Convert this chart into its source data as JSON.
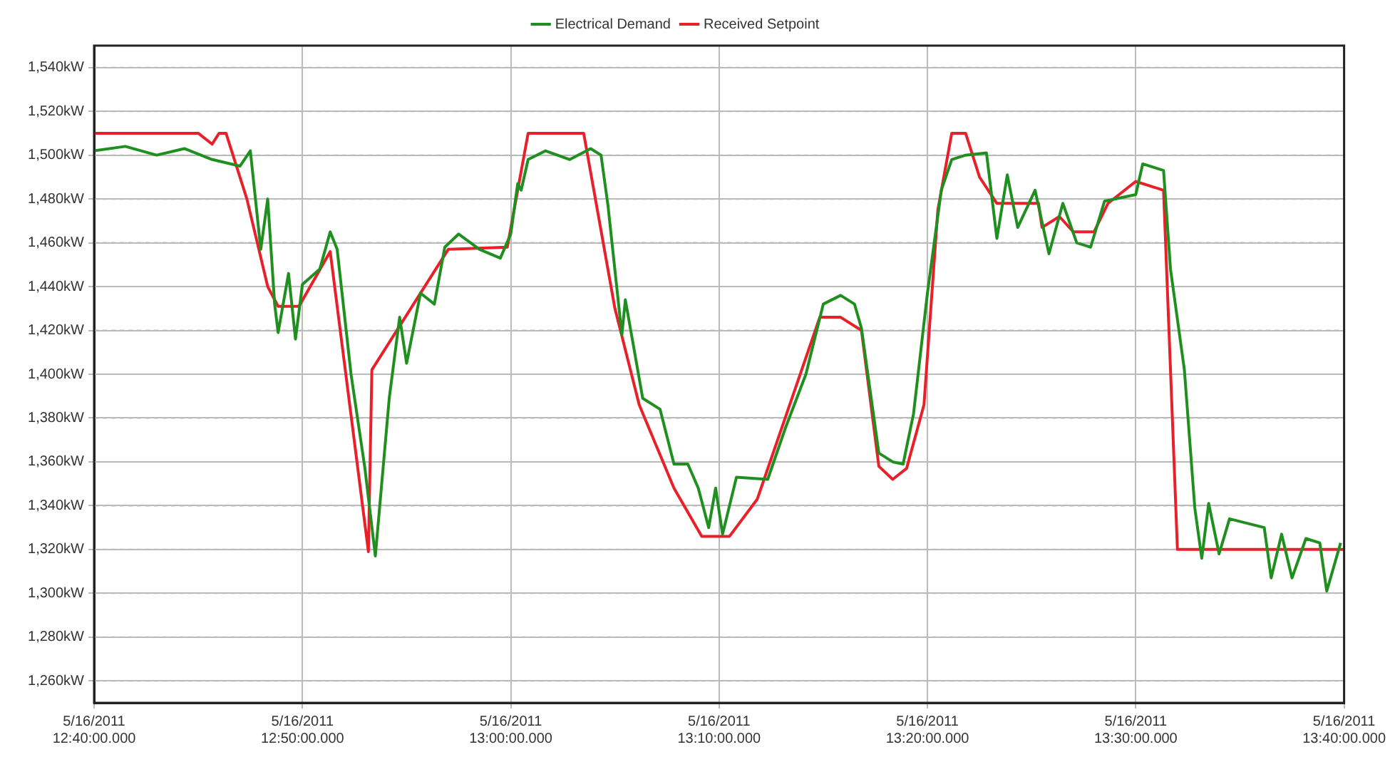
{
  "chart_data": {
    "type": "line",
    "marker": "none",
    "line_style": "solid",
    "grid": true,
    "legend": "top",
    "xlim": [
      "2011-05-16T12:40:00",
      "2011-05-16T13:40:00"
    ],
    "xticks": [
      {
        "value": "2011-05-16T12:40:00",
        "label": "5/16/2011\n12:40:00.000"
      },
      {
        "value": "2011-05-16T12:50:00",
        "label": "5/16/2011\n12:50:00.000"
      },
      {
        "value": "2011-05-16T13:00:00",
        "label": "5/16/2011\n13:00:00.000"
      },
      {
        "value": "2011-05-16T13:10:00",
        "label": "5/16/2011\n13:10:00.000"
      },
      {
        "value": "2011-05-16T13:20:00",
        "label": "5/16/2011\n13:20:00.000"
      },
      {
        "value": "2011-05-16T13:30:00",
        "label": "5/16/2011\n13:30:00.000"
      },
      {
        "value": "2011-05-16T13:40:00",
        "label": "5/16/2011\n13:40:00.000"
      }
    ],
    "ylim": [
      1250,
      1550
    ],
    "yticks": [
      {
        "value": 1260,
        "label": "1,260kW"
      },
      {
        "value": 1280,
        "label": "1,280kW"
      },
      {
        "value": 1300,
        "label": "1,300kW"
      },
      {
        "value": 1320,
        "label": "1,320kW"
      },
      {
        "value": 1340,
        "label": "1,340kW"
      },
      {
        "value": 1360,
        "label": "1,360kW"
      },
      {
        "value": 1380,
        "label": "1,380kW"
      },
      {
        "value": 1400,
        "label": "1,400kW"
      },
      {
        "value": 1420,
        "label": "1,420kW"
      },
      {
        "value": 1440,
        "label": "1,440kW"
      },
      {
        "value": 1460,
        "label": "1,460kW"
      },
      {
        "value": 1480,
        "label": "1,480kW"
      },
      {
        "value": 1500,
        "label": "1,500kW"
      },
      {
        "value": 1520,
        "label": "1,520kW"
      },
      {
        "value": 1540,
        "label": "1,540kW"
      }
    ],
    "series": [
      {
        "name": "Electrical Demand",
        "color": "#1f8f1f",
        "x": [
          "2011-05-16T12:40:00",
          "2011-05-16T12:41:30",
          "2011-05-16T12:43:00",
          "2011-05-16T12:44:20",
          "2011-05-16T12:45:40",
          "2011-05-16T12:47:00",
          "2011-05-16T12:47:30",
          "2011-05-16T12:48:00",
          "2011-05-16T12:48:20",
          "2011-05-16T12:48:40",
          "2011-05-16T12:48:50",
          "2011-05-16T12:49:20",
          "2011-05-16T12:49:40",
          "2011-05-16T12:50:00",
          "2011-05-16T12:50:50",
          "2011-05-16T12:51:20",
          "2011-05-16T12:51:40",
          "2011-05-16T12:52:20",
          "2011-05-16T12:53:00",
          "2011-05-16T12:53:30",
          "2011-05-16T12:54:10",
          "2011-05-16T12:54:40",
          "2011-05-16T12:55:00",
          "2011-05-16T12:55:40",
          "2011-05-16T12:56:20",
          "2011-05-16T12:56:50",
          "2011-05-16T12:57:30",
          "2011-05-16T12:58:30",
          "2011-05-16T12:59:30",
          "2011-05-16T13:00:00",
          "2011-05-16T13:00:20",
          "2011-05-16T13:00:30",
          "2011-05-16T13:00:50",
          "2011-05-16T13:01:40",
          "2011-05-16T13:02:50",
          "2011-05-16T13:03:50",
          "2011-05-16T13:04:20",
          "2011-05-16T13:04:40",
          "2011-05-16T13:05:20",
          "2011-05-16T13:05:30",
          "2011-05-16T13:06:20",
          "2011-05-16T13:07:10",
          "2011-05-16T13:07:50",
          "2011-05-16T13:08:30",
          "2011-05-16T13:09:00",
          "2011-05-16T13:09:30",
          "2011-05-16T13:09:50",
          "2011-05-16T13:10:10",
          "2011-05-16T13:10:50",
          "2011-05-16T13:12:20",
          "2011-05-16T13:13:10",
          "2011-05-16T13:14:10",
          "2011-05-16T13:15:00",
          "2011-05-16T13:15:50",
          "2011-05-16T13:16:30",
          "2011-05-16T13:16:50",
          "2011-05-16T13:17:40",
          "2011-05-16T13:18:20",
          "2011-05-16T13:18:50",
          "2011-05-16T13:19:20",
          "2011-05-16T13:20:00",
          "2011-05-16T13:20:40",
          "2011-05-16T13:21:10",
          "2011-05-16T13:21:50",
          "2011-05-16T13:22:50",
          "2011-05-16T13:23:20",
          "2011-05-16T13:23:50",
          "2011-05-16T13:24:20",
          "2011-05-16T13:25:10",
          "2011-05-16T13:25:50",
          "2011-05-16T13:26:30",
          "2011-05-16T13:27:10",
          "2011-05-16T13:27:50",
          "2011-05-16T13:28:30",
          "2011-05-16T13:30:00",
          "2011-05-16T13:30:20",
          "2011-05-16T13:31:20",
          "2011-05-16T13:31:40",
          "2011-05-16T13:32:20",
          "2011-05-16T13:32:50",
          "2011-05-16T13:33:10",
          "2011-05-16T13:33:30",
          "2011-05-16T13:34:00",
          "2011-05-16T13:34:30",
          "2011-05-16T13:36:10",
          "2011-05-16T13:36:30",
          "2011-05-16T13:37:00",
          "2011-05-16T13:37:30",
          "2011-05-16T13:38:10",
          "2011-05-16T13:38:50",
          "2011-05-16T13:39:10",
          "2011-05-16T13:39:50"
        ],
        "values": [
          1502,
          1504,
          1500,
          1503,
          1498,
          1495,
          1502,
          1457,
          1480,
          1432,
          1419,
          1446,
          1416,
          1441,
          1448,
          1465,
          1457,
          1400,
          1357,
          1317,
          1389,
          1426,
          1405,
          1437,
          1432,
          1458,
          1464,
          1457,
          1453,
          1464,
          1487,
          1484,
          1498,
          1502,
          1498,
          1503,
          1500,
          1477,
          1418,
          1434,
          1389,
          1384,
          1359,
          1359,
          1348,
          1330,
          1348,
          1327,
          1353,
          1352,
          1375,
          1400,
          1432,
          1436,
          1432,
          1421,
          1364,
          1360,
          1359,
          1382,
          1437,
          1484,
          1498,
          1500,
          1501,
          1462,
          1491,
          1467,
          1484,
          1455,
          1478,
          1460,
          1458,
          1479,
          1482,
          1496,
          1493,
          1448,
          1402,
          1339,
          1316,
          1341,
          1318,
          1334,
          1330,
          1307,
          1327,
          1307,
          1325,
          1323,
          1301,
          1323
        ]
      },
      {
        "name": "Received Setpoint",
        "color": "#e8202a",
        "x": [
          "2011-05-16T12:40:00",
          "2011-05-16T12:45:00",
          "2011-05-16T12:45:40",
          "2011-05-16T12:46:00",
          "2011-05-16T12:46:20",
          "2011-05-16T12:46:40",
          "2011-05-16T12:47:20",
          "2011-05-16T12:47:50",
          "2011-05-16T12:48:20",
          "2011-05-16T12:48:50",
          "2011-05-16T12:49:50",
          "2011-05-16T12:51:20",
          "2011-05-16T12:53:10",
          "2011-05-16T12:53:20",
          "2011-05-16T12:57:00",
          "2011-05-16T12:59:50",
          "2011-05-16T13:00:50",
          "2011-05-16T13:03:30",
          "2011-05-16T13:05:00",
          "2011-05-16T13:06:10",
          "2011-05-16T13:07:50",
          "2011-05-16T13:09:10",
          "2011-05-16T13:10:30",
          "2011-05-16T13:11:50",
          "2011-05-16T13:14:50",
          "2011-05-16T13:15:50",
          "2011-05-16T13:16:50",
          "2011-05-16T13:17:40",
          "2011-05-16T13:18:20",
          "2011-05-16T13:19:00",
          "2011-05-16T13:19:50",
          "2011-05-16T13:20:30",
          "2011-05-16T13:21:10",
          "2011-05-16T13:21:50",
          "2011-05-16T13:22:30",
          "2011-05-16T13:23:20",
          "2011-05-16T13:25:20",
          "2011-05-16T13:25:30",
          "2011-05-16T13:26:20",
          "2011-05-16T13:27:00",
          "2011-05-16T13:28:00",
          "2011-05-16T13:28:40",
          "2011-05-16T13:30:00",
          "2011-05-16T13:31:20",
          "2011-05-16T13:32:00",
          "2011-05-16T13:40:00"
        ],
        "values": [
          1510,
          1510,
          1505,
          1510,
          1510,
          1500,
          1480,
          1460,
          1440,
          1431,
          1431,
          1456,
          1319,
          1402,
          1457,
          1458,
          1510,
          1510,
          1430,
          1386,
          1348,
          1326,
          1326,
          1343,
          1426,
          1426,
          1420,
          1358,
          1352,
          1357,
          1386,
          1475,
          1510,
          1510,
          1490,
          1478,
          1478,
          1467,
          1472,
          1465,
          1465,
          1478,
          1488,
          1484,
          1320,
          1320
        ]
      }
    ]
  }
}
